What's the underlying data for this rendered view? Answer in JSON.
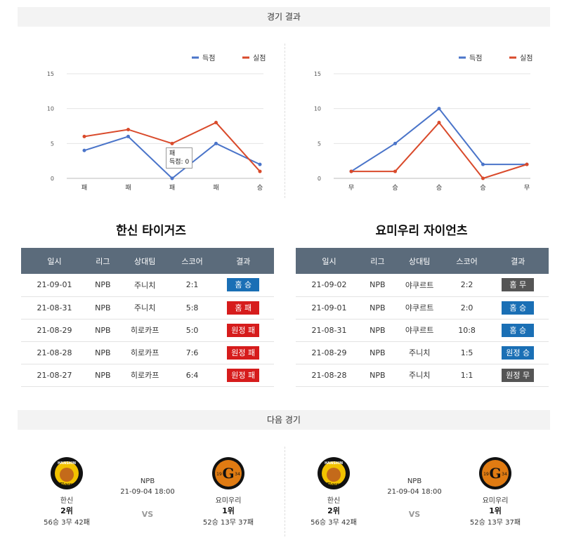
{
  "sections": {
    "results_title": "경기 결과",
    "next_title": "다음 경기"
  },
  "charts": [
    {
      "legend": [
        "득점",
        "실점"
      ],
      "categories": [
        "패",
        "패",
        "패",
        "패",
        "승"
      ],
      "scored": [
        4,
        6,
        0,
        5,
        2
      ],
      "conceded": [
        6,
        7,
        5,
        8,
        1
      ],
      "tooltip": {
        "title": "패",
        "text": "득점: 0"
      }
    },
    {
      "legend": [
        "득점",
        "실점"
      ],
      "categories": [
        "무",
        "승",
        "승",
        "승",
        "무"
      ],
      "scored": [
        1,
        5,
        10,
        2,
        2
      ],
      "conceded": [
        1,
        1,
        8,
        0,
        2
      ]
    }
  ],
  "chart_data": [
    {
      "type": "line",
      "categories": [
        "패",
        "패",
        "패",
        "패",
        "승"
      ],
      "ylim": [
        0,
        15
      ],
      "yticks": [
        0,
        5,
        10,
        15
      ],
      "legend_position": "top-right",
      "series": [
        {
          "name": "득점",
          "values": [
            4,
            6,
            0,
            5,
            2
          ]
        },
        {
          "name": "실점",
          "values": [
            6,
            7,
            5,
            8,
            1
          ]
        }
      ]
    },
    {
      "type": "line",
      "categories": [
        "무",
        "승",
        "승",
        "승",
        "무"
      ],
      "ylim": [
        0,
        15
      ],
      "yticks": [
        0,
        5,
        10,
        15
      ],
      "legend_position": "top-right",
      "series": [
        {
          "name": "득점",
          "values": [
            1,
            5,
            10,
            2,
            2
          ]
        },
        {
          "name": "실점",
          "values": [
            1,
            1,
            8,
            0,
            2
          ]
        }
      ]
    }
  ],
  "colors": {
    "scored": "#4a74c9",
    "conceded": "#d94a2b",
    "win": "#1a6fb5",
    "loss": "#d61c1c",
    "draw": "#555555"
  },
  "teams": [
    {
      "name": "한신 타이거즈",
      "headers": [
        "일시",
        "리그",
        "상대팀",
        "스코어",
        "결과"
      ],
      "rows": [
        {
          "date": "21-09-01",
          "league": "NPB",
          "opp": "주니치",
          "score": "2:1",
          "result": "홈 승",
          "type": "win"
        },
        {
          "date": "21-08-31",
          "league": "NPB",
          "opp": "주니치",
          "score": "5:8",
          "result": "홈 패",
          "type": "loss"
        },
        {
          "date": "21-08-29",
          "league": "NPB",
          "opp": "히로카프",
          "score": "5:0",
          "result": "원정 패",
          "type": "loss"
        },
        {
          "date": "21-08-28",
          "league": "NPB",
          "opp": "히로카프",
          "score": "7:6",
          "result": "원정 패",
          "type": "loss"
        },
        {
          "date": "21-08-27",
          "league": "NPB",
          "opp": "히로카프",
          "score": "6:4",
          "result": "원정 패",
          "type": "loss"
        }
      ]
    },
    {
      "name": "요미우리 자이언츠",
      "headers": [
        "일시",
        "리그",
        "상대팀",
        "스코어",
        "결과"
      ],
      "rows": [
        {
          "date": "21-09-02",
          "league": "NPB",
          "opp": "야쿠르트",
          "score": "2:2",
          "result": "홈 무",
          "type": "draw"
        },
        {
          "date": "21-09-01",
          "league": "NPB",
          "opp": "야쿠르트",
          "score": "2:0",
          "result": "홈 승",
          "type": "win"
        },
        {
          "date": "21-08-31",
          "league": "NPB",
          "opp": "야쿠르트",
          "score": "10:8",
          "result": "홈 승",
          "type": "win"
        },
        {
          "date": "21-08-29",
          "league": "NPB",
          "opp": "주니치",
          "score": "1:5",
          "result": "원정 승",
          "type": "win"
        },
        {
          "date": "21-08-28",
          "league": "NPB",
          "opp": "주니치",
          "score": "1:1",
          "result": "원정 무",
          "type": "draw"
        }
      ]
    }
  ],
  "next_games": [
    {
      "league": "NPB",
      "datetime": "21-09-04 18:00",
      "vs": "VS",
      "home": {
        "name": "한신",
        "rank": "2위",
        "record": "56승 3무 42패",
        "logo_text": "HANSHIN",
        "logo_sub": "Tigers"
      },
      "away": {
        "name": "요미우리",
        "rank": "1위",
        "record": "52승 13무 37패",
        "logo_text": "G",
        "logo_left": "19",
        "logo_right": "34"
      }
    },
    {
      "league": "NPB",
      "datetime": "21-09-04 18:00",
      "vs": "VS",
      "home": {
        "name": "한신",
        "rank": "2위",
        "record": "56승 3무 42패",
        "logo_text": "HANSHIN",
        "logo_sub": "Tigers"
      },
      "away": {
        "name": "요미우리",
        "rank": "1위",
        "record": "52승 13무 37패",
        "logo_text": "G",
        "logo_left": "19",
        "logo_right": "34"
      }
    }
  ]
}
